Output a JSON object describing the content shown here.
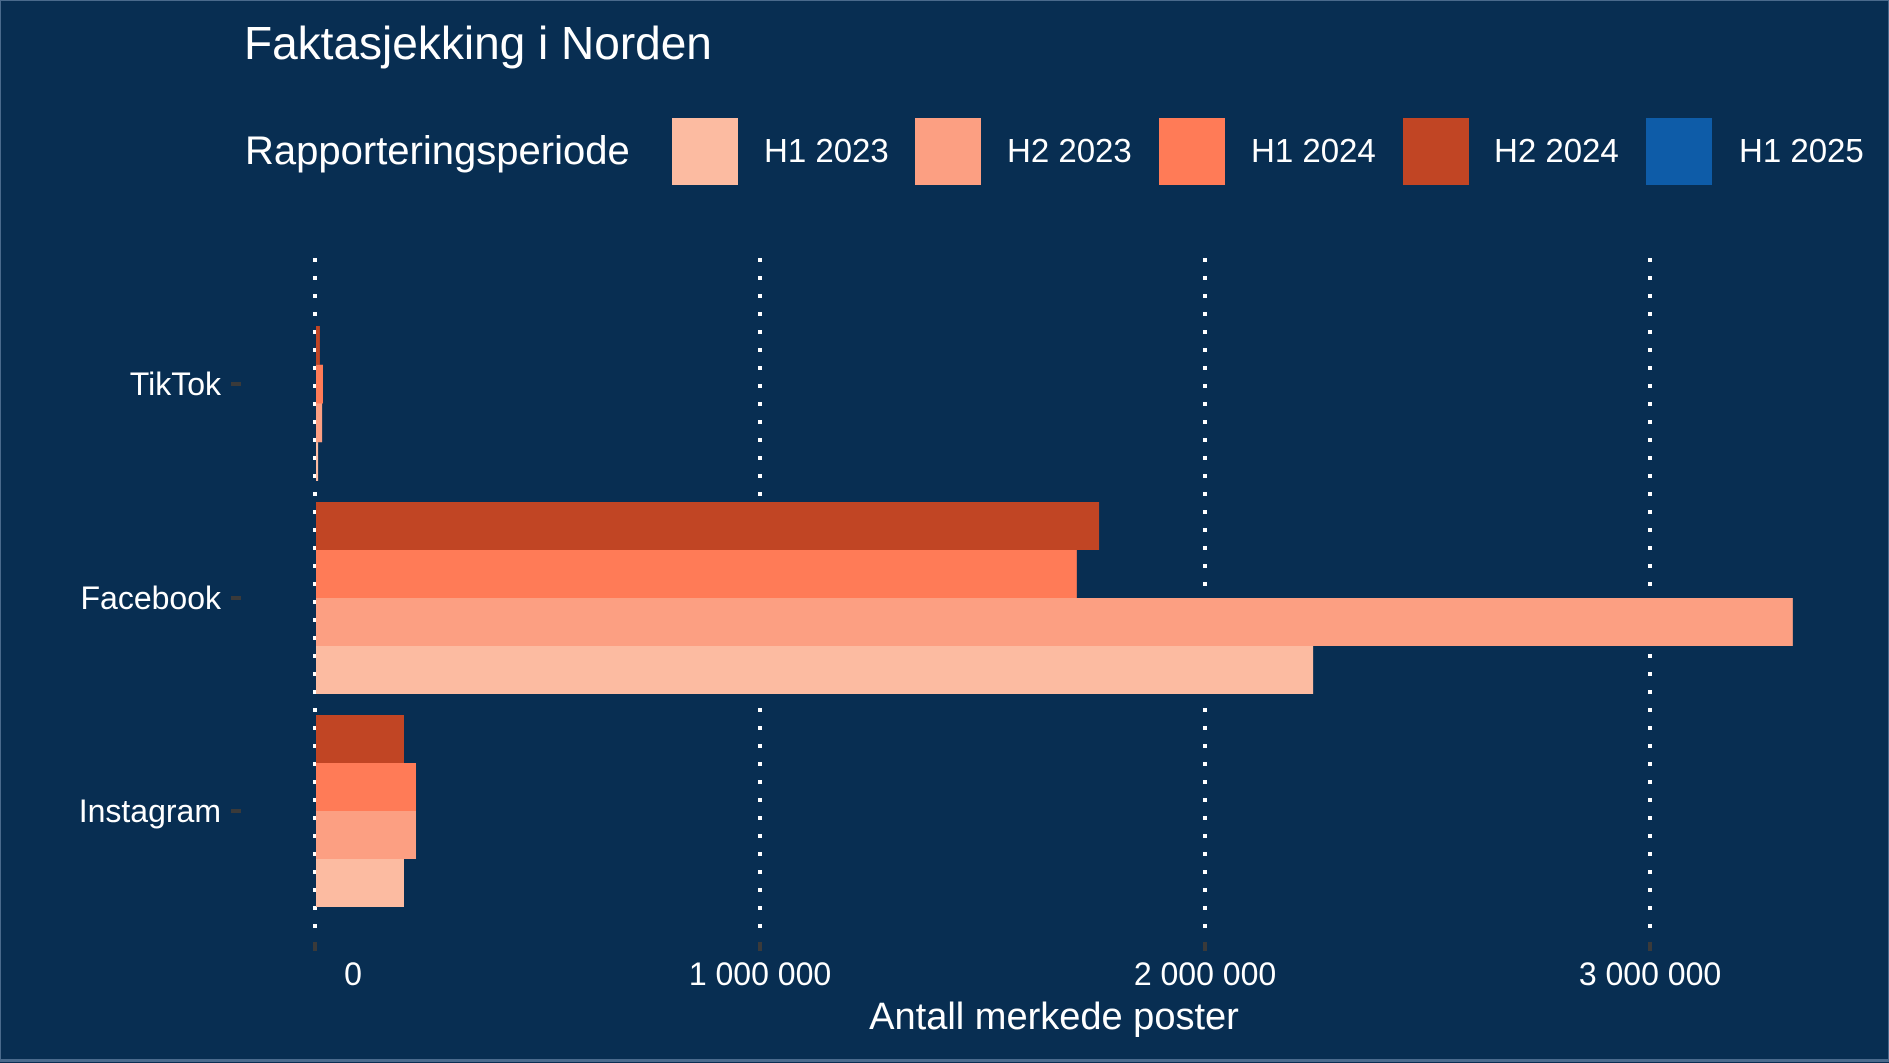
{
  "chart_data": {
    "type": "bar",
    "orientation": "horizontal",
    "title": "Faktasjekking i Norden",
    "xlabel": "Antall merkede poster",
    "ylabel": "",
    "categories": [
      "TikTok",
      "Facebook",
      "Instagram"
    ],
    "xlim": [
      0,
      3400000
    ],
    "xticks": [
      0,
      1000000,
      2000000,
      3000000
    ],
    "xtick_labels": [
      "0",
      "1 000 000",
      "2 000 000",
      "3 000 000"
    ],
    "grid": "vertical dotted",
    "legend": {
      "title": "Rapporteringsperiode",
      "position": "top",
      "entries": [
        "H1 2023",
        "H2 2023",
        "H1 2024",
        "H2 2024",
        "H1 2025"
      ]
    },
    "series": [
      {
        "name": "H1 2023",
        "color": "#fcbba1",
        "values": [
          7000,
          2243000,
          200000
        ]
      },
      {
        "name": "H2 2023",
        "color": "#fc9f82",
        "values": [
          16000,
          3321000,
          227000
        ]
      },
      {
        "name": "H1 2024",
        "color": "#ff7b57",
        "values": [
          18000,
          1712000,
          227000
        ]
      },
      {
        "name": "H2 2024",
        "color": "#c14524",
        "values": [
          11000,
          1762000,
          200000
        ]
      },
      {
        "name": "H1 2025",
        "color": "#0e5ca8",
        "values": [
          null,
          null,
          null
        ]
      }
    ]
  },
  "colors": {
    "background": "#082e52",
    "text": "#ffffff",
    "grid": "#ffffff",
    "tick": "#3a3a3a"
  }
}
